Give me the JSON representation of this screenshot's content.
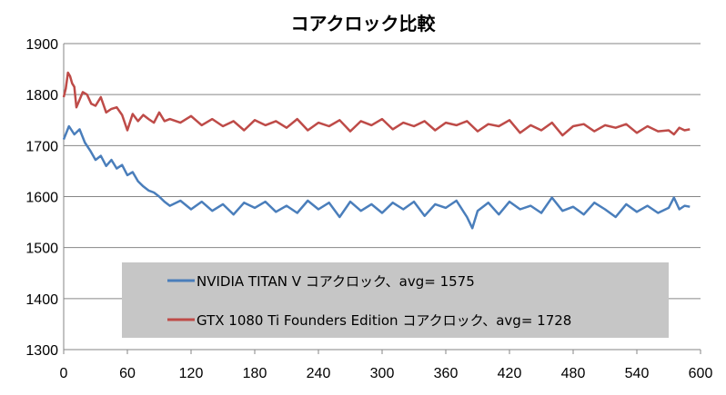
{
  "chart_data": {
    "type": "line",
    "title": "コアクロック比較",
    "xlabel": "",
    "ylabel": "",
    "xlim": [
      0,
      600
    ],
    "ylim": [
      1300,
      1900
    ],
    "x_ticks": [
      0,
      60,
      120,
      180,
      240,
      300,
      360,
      420,
      480,
      540,
      600
    ],
    "y_ticks": [
      1300,
      1400,
      1500,
      1600,
      1700,
      1800,
      1900
    ],
    "grid": "horizontal",
    "legend_position": "bottom-center",
    "series": [
      {
        "name": "NVIDIA TITAN V コアクロック、avg= 1575",
        "color": "#4a7ebb",
        "x": [
          0,
          5,
          10,
          15,
          20,
          25,
          30,
          35,
          40,
          45,
          50,
          55,
          60,
          65,
          70,
          75,
          80,
          85,
          90,
          95,
          100,
          110,
          120,
          130,
          140,
          150,
          160,
          170,
          180,
          190,
          200,
          210,
          220,
          230,
          240,
          250,
          260,
          270,
          280,
          290,
          300,
          310,
          320,
          330,
          340,
          350,
          360,
          370,
          380,
          385,
          390,
          400,
          410,
          420,
          430,
          440,
          450,
          460,
          470,
          480,
          490,
          500,
          510,
          520,
          530,
          540,
          550,
          560,
          570,
          575,
          580,
          585,
          590
        ],
        "values": [
          1712,
          1738,
          1722,
          1732,
          1706,
          1690,
          1672,
          1680,
          1660,
          1672,
          1655,
          1662,
          1642,
          1648,
          1630,
          1620,
          1612,
          1608,
          1600,
          1590,
          1582,
          1592,
          1575,
          1590,
          1572,
          1585,
          1565,
          1588,
          1578,
          1590,
          1570,
          1582,
          1568,
          1592,
          1575,
          1588,
          1560,
          1590,
          1572,
          1585,
          1568,
          1588,
          1575,
          1590,
          1562,
          1585,
          1578,
          1592,
          1560,
          1538,
          1572,
          1588,
          1565,
          1590,
          1575,
          1582,
          1568,
          1598,
          1572,
          1580,
          1565,
          1588,
          1575,
          1560,
          1585,
          1570,
          1582,
          1568,
          1578,
          1598,
          1575,
          1582,
          1580
        ]
      },
      {
        "name": "GTX 1080 Ti Founders Edition コアクロック、avg= 1728",
        "color": "#be4b48",
        "x": [
          0,
          2,
          4,
          6,
          8,
          10,
          12,
          15,
          18,
          22,
          26,
          30,
          35,
          40,
          45,
          50,
          55,
          60,
          65,
          70,
          75,
          80,
          85,
          90,
          95,
          100,
          110,
          120,
          130,
          140,
          150,
          160,
          170,
          180,
          190,
          200,
          210,
          220,
          230,
          240,
          250,
          260,
          270,
          280,
          290,
          300,
          310,
          320,
          330,
          340,
          350,
          360,
          370,
          380,
          390,
          400,
          410,
          420,
          430,
          440,
          450,
          460,
          470,
          480,
          490,
          500,
          510,
          520,
          530,
          540,
          550,
          560,
          570,
          575,
          580,
          585,
          590
        ],
        "values": [
          1795,
          1812,
          1843,
          1836,
          1822,
          1815,
          1775,
          1790,
          1805,
          1800,
          1782,
          1778,
          1795,
          1765,
          1772,
          1775,
          1760,
          1730,
          1762,
          1748,
          1760,
          1752,
          1745,
          1765,
          1748,
          1752,
          1745,
          1758,
          1740,
          1752,
          1738,
          1748,
          1730,
          1750,
          1740,
          1748,
          1735,
          1752,
          1730,
          1745,
          1738,
          1750,
          1728,
          1748,
          1740,
          1752,
          1732,
          1745,
          1738,
          1748,
          1730,
          1745,
          1740,
          1748,
          1728,
          1742,
          1738,
          1750,
          1725,
          1740,
          1730,
          1745,
          1720,
          1738,
          1742,
          1728,
          1740,
          1735,
          1742,
          1725,
          1738,
          1728,
          1730,
          1722,
          1735,
          1730,
          1732
        ]
      }
    ]
  }
}
